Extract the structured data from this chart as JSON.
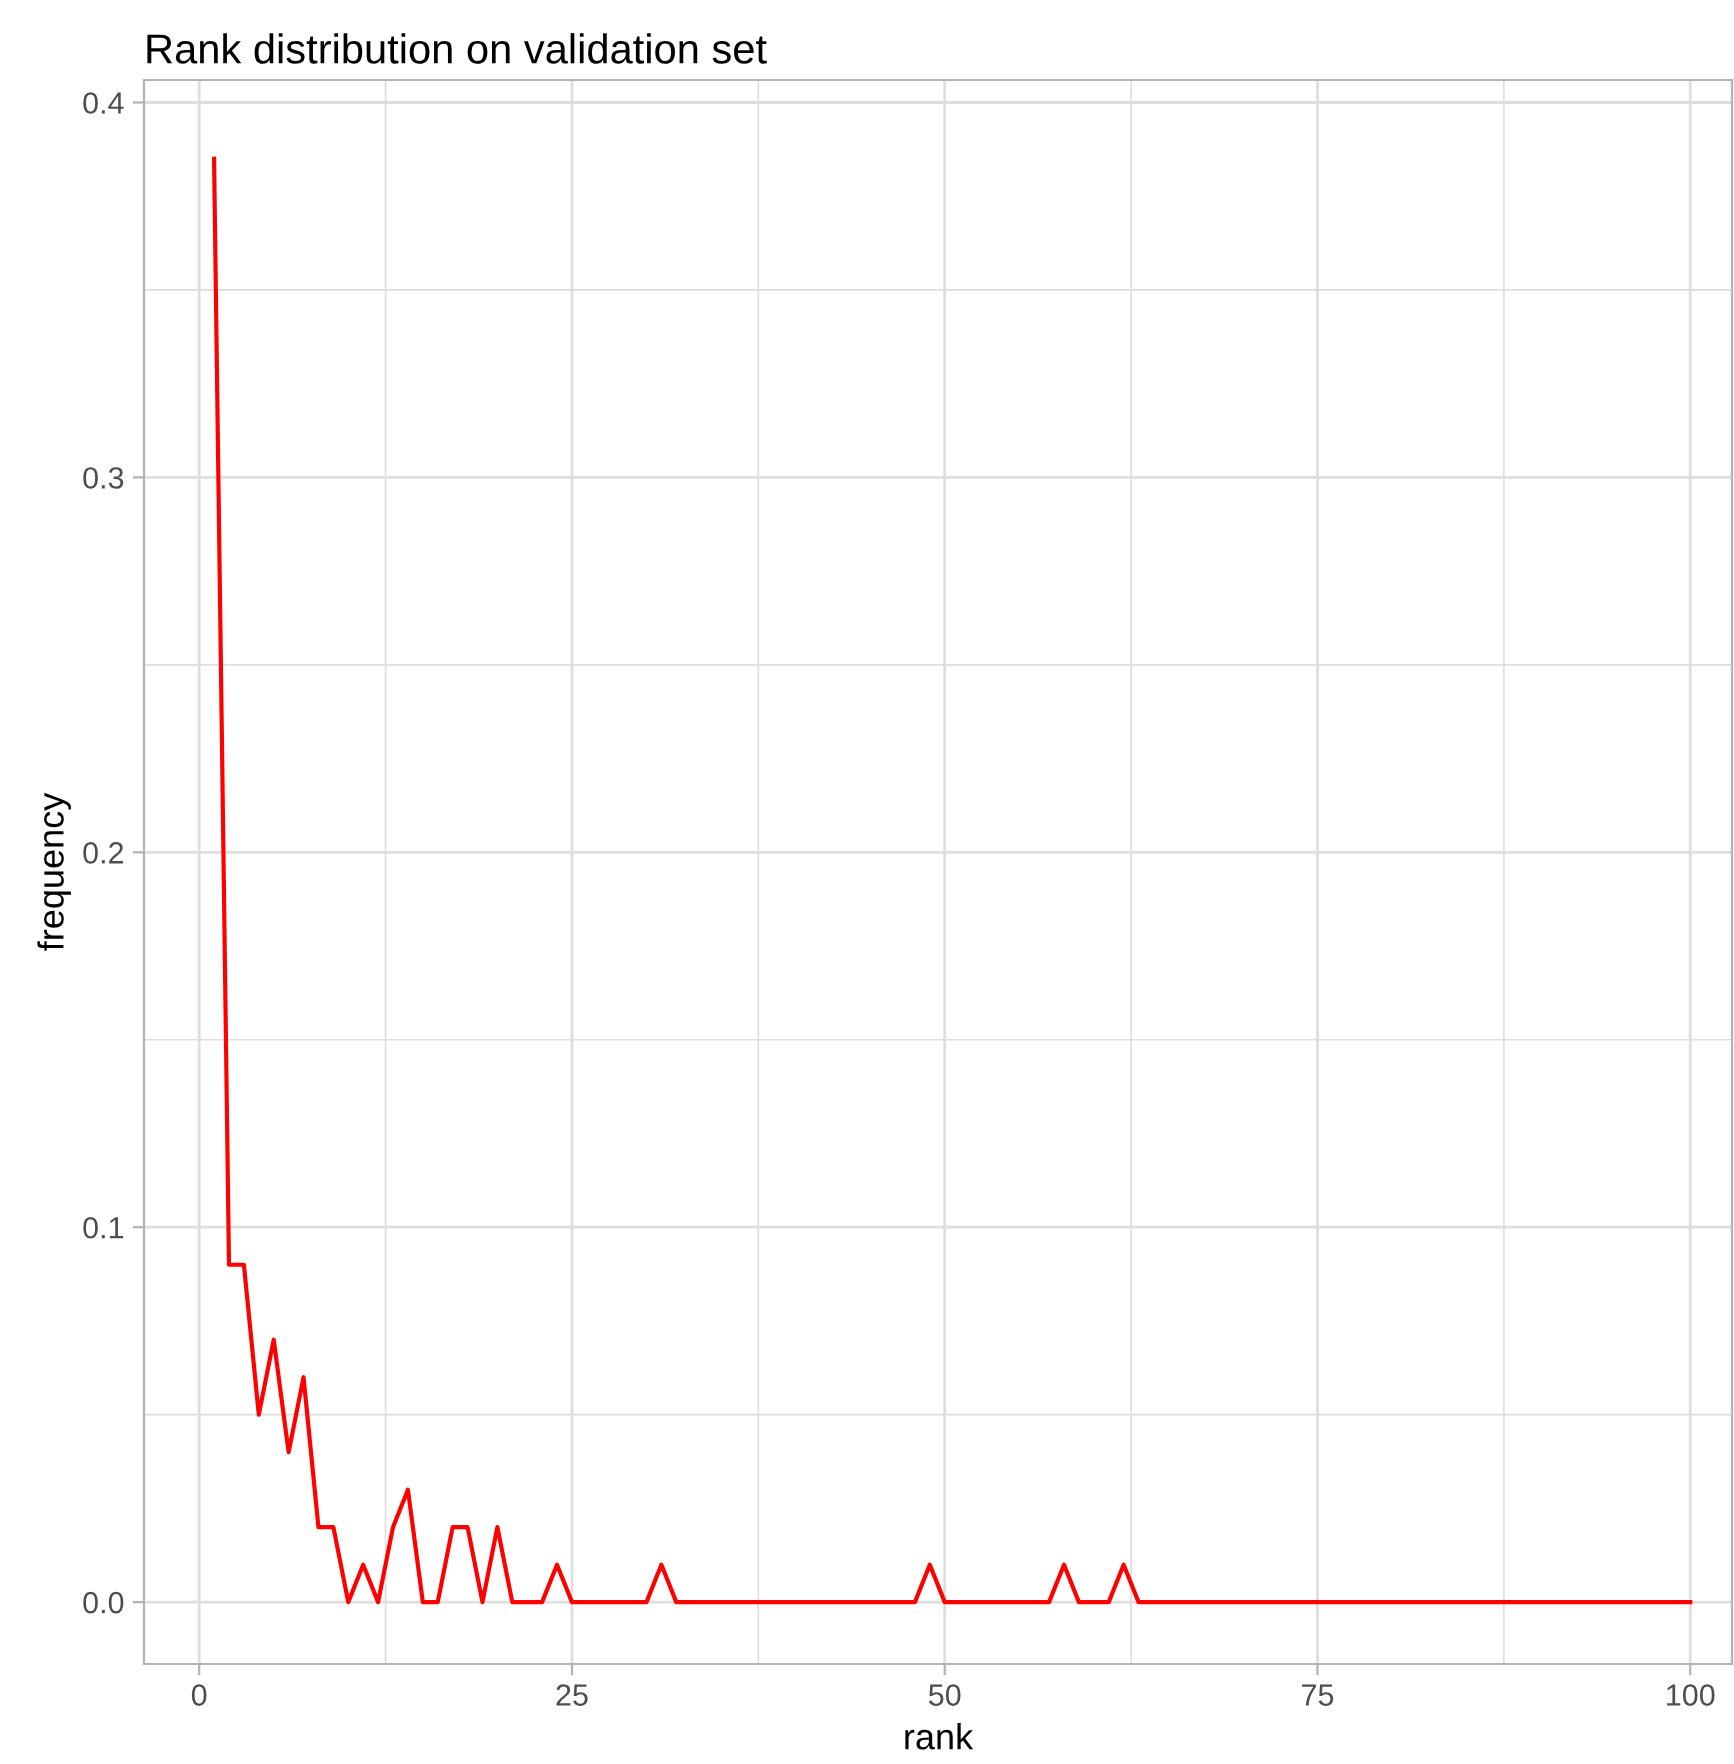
{
  "chart_data": {
    "type": "line",
    "title": "Rank distribution on validation set",
    "xlabel": "rank",
    "ylabel": "frequency",
    "x": [
      1,
      2,
      3,
      4,
      5,
      6,
      7,
      8,
      9,
      10,
      11,
      12,
      13,
      14,
      15,
      16,
      17,
      18,
      19,
      20,
      21,
      22,
      23,
      24,
      25,
      26,
      27,
      28,
      29,
      30,
      31,
      32,
      33,
      34,
      35,
      36,
      37,
      38,
      39,
      40,
      41,
      42,
      43,
      44,
      45,
      46,
      47,
      48,
      49,
      50,
      51,
      52,
      53,
      54,
      55,
      56,
      57,
      58,
      59,
      60,
      61,
      62,
      63,
      64,
      65,
      66,
      67,
      68,
      69,
      70,
      71,
      72,
      73,
      74,
      75,
      76,
      77,
      78,
      79,
      80,
      81,
      82,
      83,
      84,
      85,
      86,
      87,
      88,
      89,
      90,
      91,
      92,
      93,
      94,
      95,
      96,
      97,
      98,
      99,
      100
    ],
    "series": [
      {
        "color": "#ff0000",
        "values": [
          0.385,
          0.09,
          0.09,
          0.05,
          0.07,
          0.04,
          0.06,
          0.02,
          0.02,
          0,
          0.01,
          0,
          0.02,
          0.03,
          0,
          0,
          0.02,
          0.02,
          0,
          0.02,
          0,
          0,
          0,
          0.01,
          0,
          0,
          0,
          0,
          0,
          0,
          0.01,
          0,
          0,
          0,
          0,
          0,
          0,
          0,
          0,
          0,
          0,
          0,
          0,
          0,
          0,
          0,
          0,
          0,
          0.01,
          0,
          0,
          0,
          0,
          0,
          0,
          0,
          0,
          0.01,
          0,
          0,
          0,
          0.01,
          0,
          0,
          0,
          0,
          0,
          0,
          0,
          0,
          0,
          0,
          0,
          0,
          0,
          0,
          0,
          0,
          0,
          0,
          0,
          0,
          0,
          0,
          0,
          0,
          0,
          0,
          0,
          0,
          0,
          0,
          0,
          0,
          0,
          0,
          0,
          0,
          0,
          0
        ]
      }
    ],
    "xlim": [
      -3.7,
      102.8
    ],
    "ylim": [
      -0.0165,
      0.406
    ],
    "xticks": [
      0,
      {
        "value": 12.5,
        "label": null
      },
      25,
      {
        "value": 37.5,
        "label": null
      },
      50,
      {
        "value": 62.5,
        "label": null
      },
      75,
      {
        "value": 87.5,
        "label": null
      },
      100
    ],
    "yticks": [
      "0.0",
      {
        "value": 0.05,
        "label": null
      },
      0.1,
      {
        "value": 0.15,
        "label": null
      },
      0.2,
      {
        "value": 0.25,
        "label": null
      },
      0.3,
      {
        "value": 0.35,
        "label": null
      },
      0.4
    ],
    "grid": true,
    "marker": "none",
    "line_style": "solid"
  }
}
